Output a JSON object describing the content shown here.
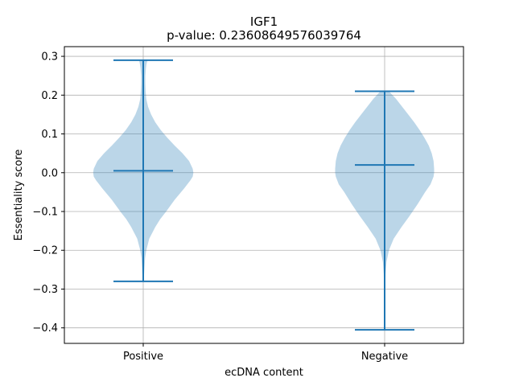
{
  "chart_data": {
    "type": "violin",
    "title": "IGF1",
    "subtitle": "p-value: 0.23608649576039764",
    "xlabel": "ecDNA content",
    "ylabel": "Essentiality score",
    "ylim": [
      -0.44,
      0.325
    ],
    "yticks": [
      -0.4,
      -0.3,
      -0.2,
      -0.1,
      0.0,
      0.1,
      0.2,
      0.3
    ],
    "ytick_labels": [
      "−0.4",
      "−0.3",
      "−0.2",
      "−0.1",
      "0.0",
      "0.1",
      "0.2",
      "0.3"
    ],
    "grid": true,
    "colors": {
      "body": "#1f77b4",
      "line": "#1f77b4",
      "body_opacity": 0.3,
      "grid": "#b0b0b0"
    },
    "categories": [
      "Positive",
      "Negative"
    ],
    "series": [
      {
        "min": -0.28,
        "median": 0.005,
        "max": 0.29,
        "density": [
          [
            -0.28,
            0.005
          ],
          [
            -0.26,
            0.015
          ],
          [
            -0.22,
            0.03
          ],
          [
            -0.2,
            0.05
          ],
          [
            -0.17,
            0.1
          ],
          [
            -0.14,
            0.2
          ],
          [
            -0.12,
            0.28
          ],
          [
            -0.1,
            0.38
          ],
          [
            -0.07,
            0.52
          ],
          [
            -0.04,
            0.68
          ],
          [
            -0.02,
            0.78
          ],
          [
            -0.01,
            0.82
          ],
          [
            0.0,
            0.83
          ],
          [
            0.01,
            0.82
          ],
          [
            0.03,
            0.76
          ],
          [
            0.05,
            0.65
          ],
          [
            0.07,
            0.52
          ],
          [
            0.09,
            0.4
          ],
          [
            0.11,
            0.29
          ],
          [
            0.13,
            0.2
          ],
          [
            0.15,
            0.13
          ],
          [
            0.17,
            0.08
          ],
          [
            0.19,
            0.05
          ],
          [
            0.21,
            0.04
          ],
          [
            0.23,
            0.035
          ],
          [
            0.25,
            0.035
          ],
          [
            0.27,
            0.045
          ],
          [
            0.28,
            0.055
          ],
          [
            0.29,
            0.07
          ]
        ]
      },
      {
        "min": -0.405,
        "median": 0.02,
        "max": 0.21,
        "density": [
          [
            -0.405,
            0.005
          ],
          [
            -0.38,
            0.005
          ],
          [
            -0.34,
            0.006
          ],
          [
            -0.3,
            0.01
          ],
          [
            -0.26,
            0.015
          ],
          [
            -0.23,
            0.03
          ],
          [
            -0.2,
            0.07
          ],
          [
            -0.17,
            0.15
          ],
          [
            -0.14,
            0.28
          ],
          [
            -0.11,
            0.42
          ],
          [
            -0.08,
            0.55
          ],
          [
            -0.05,
            0.67
          ],
          [
            -0.03,
            0.76
          ],
          [
            -0.01,
            0.81
          ],
          [
            0.0,
            0.82
          ],
          [
            0.01,
            0.82
          ],
          [
            0.03,
            0.81
          ],
          [
            0.05,
            0.78
          ],
          [
            0.07,
            0.73
          ],
          [
            0.09,
            0.66
          ],
          [
            0.11,
            0.58
          ],
          [
            0.13,
            0.49
          ],
          [
            0.15,
            0.39
          ],
          [
            0.17,
            0.29
          ],
          [
            0.19,
            0.19
          ],
          [
            0.2,
            0.13
          ],
          [
            0.21,
            0.07
          ]
        ]
      }
    ]
  }
}
